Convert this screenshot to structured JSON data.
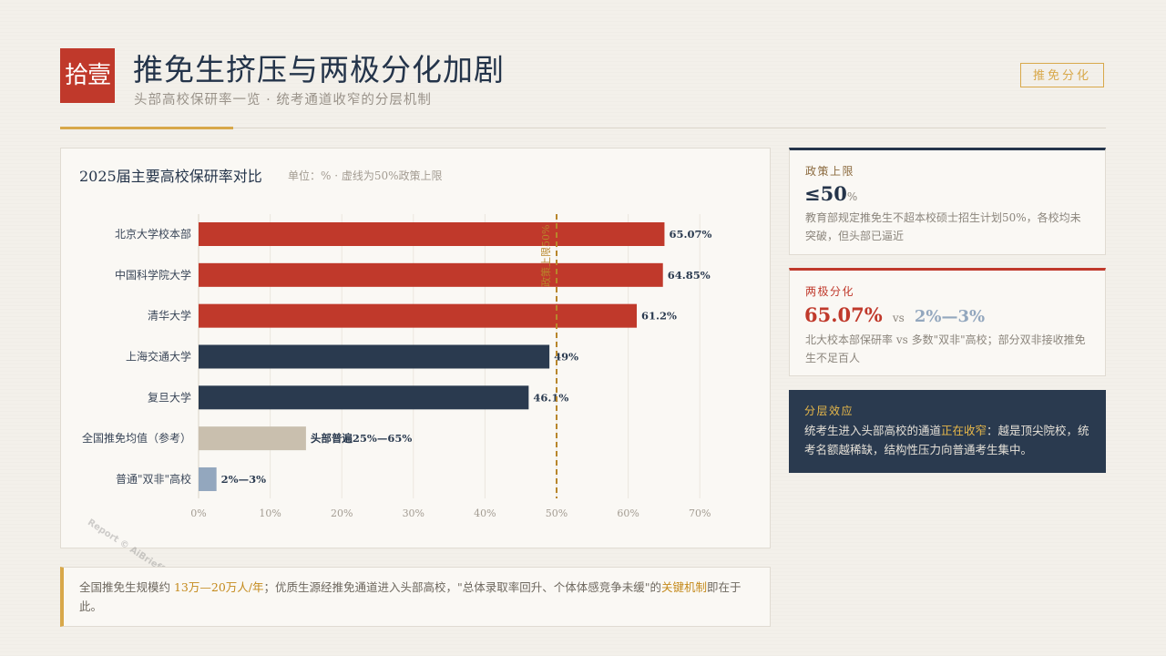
{
  "header": {
    "badge": "拾壹",
    "title": "推免生挤压与两极分化加剧",
    "subtitle": "头部高校保研率一览 · 统考通道收窄的分层机制",
    "tag_button": "推免分化"
  },
  "chart": {
    "title": "2025届主要高校保研率对比",
    "note": "单位：% · 虚线为50%政策上限",
    "watermark": "Report © AiBriefSlide.com"
  },
  "chart_data": {
    "type": "bar",
    "orientation": "horizontal",
    "categories": [
      "北京大学校本部",
      "中国科学院大学",
      "清华大学",
      "上海交通大学",
      "复旦大学",
      "全国推免均值（参考）",
      "普通\"双非\"高校"
    ],
    "values": [
      65.07,
      64.85,
      61.2,
      49,
      46.1,
      15,
      2.5
    ],
    "value_labels": [
      "65.07%",
      "64.85%",
      "61.2%",
      "49%",
      "46.1%",
      "头部普遍25%—65%",
      "2%—3%"
    ],
    "bar_colors": [
      "#c0392b",
      "#c0392b",
      "#c0392b",
      "#2a3a4f",
      "#2a3a4f",
      "#c9bfae",
      "#93a7be"
    ],
    "x_ticks": [
      "0%",
      "10%",
      "20%",
      "30%",
      "40%",
      "50%",
      "60%",
      "70%"
    ],
    "xlim": [
      0,
      70
    ],
    "reference_line": {
      "value": 50,
      "label": "政策上限50%",
      "color": "#b8862b"
    },
    "grid": true
  },
  "cards": [
    {
      "label": "政策上限",
      "value": "≤50",
      "unit": "%",
      "desc": "教育部规定推免生不超本校硕士招生计划50%，各校均未突破，但头部已逼近"
    },
    {
      "label": "两极分化",
      "value_a": "65.07%",
      "vs": "vs",
      "value_b": "2%—3%",
      "desc": "北大校本部保研率 vs 多数\"双非\"高校；部分双非接收推免生不足百人"
    },
    {
      "label": "分层效应",
      "text_1": "统考生进入头部高校的通道",
      "text_hl": "正在收窄",
      "text_2": "：越是顶尖院校，统考名额越稀缺，结构性压力向普通考生集中。"
    }
  ],
  "bottom_note": {
    "text_1": "全国推免生规模约 ",
    "hl_1": "13万—20万人/年",
    "text_2": "；优质生源经推免通道进入头部高校，\"总体录取率回升、个体体感竞争未缓\"的",
    "hl_2": "关键机制",
    "text_3": "即在于此。"
  },
  "colors": {
    "red": "#c0392b",
    "navy": "#2a3a4f",
    "gold": "#d8a84a",
    "beige": "#c9bfae",
    "steel": "#93a7be"
  }
}
